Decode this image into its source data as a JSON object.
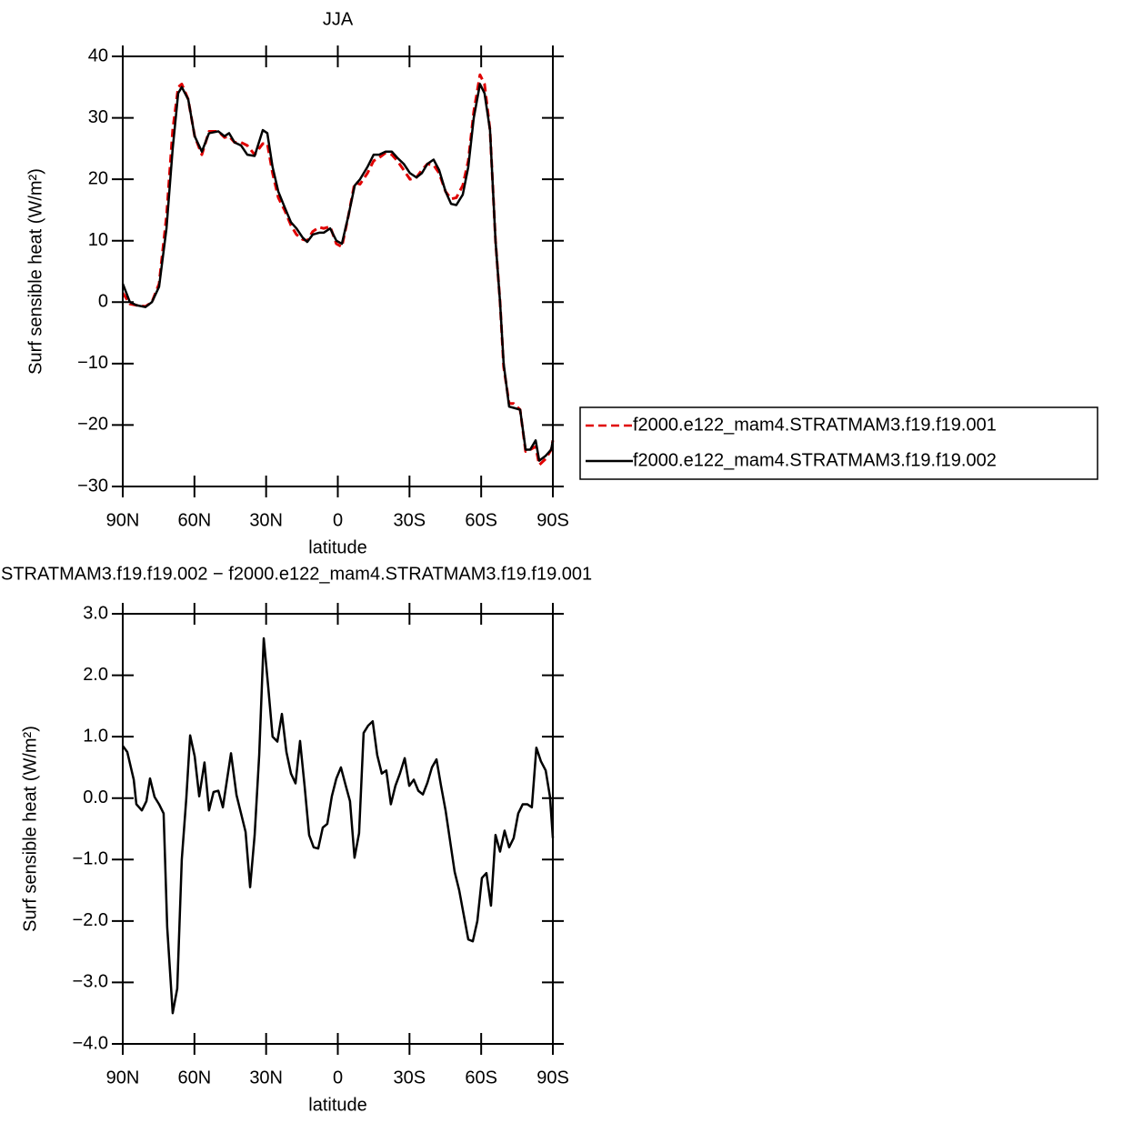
{
  "chart_data": [
    {
      "type": "line",
      "title": "JJA",
      "x_label": "latitude",
      "y_label": "Surf sensible heat (W/m²)",
      "xlim": [
        90,
        -90
      ],
      "ylim": [
        -30,
        40
      ],
      "xticks": [
        {
          "value": 90,
          "label": "90N"
        },
        {
          "value": 60,
          "label": "60N"
        },
        {
          "value": 30,
          "label": "30N"
        },
        0,
        {
          "value": -30,
          "label": "30S"
        },
        {
          "value": -60,
          "label": "60S"
        },
        {
          "value": -90,
          "label": "90S"
        }
      ],
      "yticks": [
        {
          "value": -30,
          "label": "−30"
        },
        {
          "value": -20,
          "label": "−20"
        },
        {
          "value": -10,
          "label": "−10"
        },
        0,
        10,
        20,
        30,
        40
      ],
      "legend": "right",
      "x": [
        90,
        87,
        84.3,
        80.5,
        77.8,
        74.8,
        71.7,
        69.1,
        66.8,
        65.3,
        62.6,
        59.9,
        56.9,
        53.9,
        50,
        47.4,
        45.5,
        43.2,
        40.5,
        37.9,
        34.8,
        31.4,
        29.5,
        27.3,
        24.9,
        22.3,
        19.6,
        17.3,
        14.7,
        12.8,
        10.5,
        7.8,
        5.9,
        3.2,
        0.6,
        -1.7,
        -4.4,
        -7.1,
        -9.3,
        -12.4,
        -15,
        -17.3,
        -20,
        -22.6,
        -24.9,
        -27.6,
        -30.2,
        -32.9,
        -35.2,
        -37.5,
        -40.1,
        -42.4,
        -45.1,
        -47.4,
        -49.6,
        -52.3,
        -54.6,
        -56.9,
        -59.5,
        -61.4,
        -63.7,
        -66,
        -67.9,
        -69.4,
        -71.7,
        -73.6,
        -76.3,
        -78.6,
        -80.5,
        -82.8,
        -84.3,
        -87,
        -89.3,
        -90
      ],
      "series": [
        {
          "name": "f2000.e122_mam4.STRATMAM3.f19.f19.001",
          "color": "#e00000",
          "linestyle": "dashed",
          "values": [
            1.5,
            -0.3,
            -0.5,
            -0.7,
            0,
            3,
            14,
            28,
            35,
            35.5,
            33,
            27,
            24,
            27.8,
            27.8,
            26.8,
            27,
            26,
            26,
            25.5,
            24,
            25.8,
            25.8,
            21,
            17,
            15,
            12.5,
            11,
            10.2,
            10,
            11.5,
            12.2,
            12,
            12.3,
            9.5,
            9,
            14,
            19.5,
            19.2,
            21,
            23,
            23.5,
            24.3,
            24,
            23,
            21.5,
            20,
            20.3,
            21.5,
            22.5,
            22.3,
            21,
            18,
            16.8,
            17,
            19,
            23,
            31,
            37,
            35.5,
            28,
            10,
            0,
            -10.5,
            -16.5,
            -16.5,
            -17.5,
            -24.3,
            -24,
            -23.5,
            -26.5,
            -25.5,
            -24,
            -22.5
          ]
        },
        {
          "name": "f2000.e122_mam4.STRATMAM3.f19.f19.002",
          "color": "#000000",
          "linestyle": "solid",
          "values": [
            3,
            0,
            -0.5,
            -0.8,
            0,
            2.5,
            12,
            25,
            34,
            35,
            33,
            27,
            24.5,
            27.5,
            27.8,
            27,
            27.5,
            26,
            25.5,
            24,
            23.8,
            28,
            27.5,
            22,
            18,
            15.5,
            13,
            12,
            10.5,
            9.8,
            11,
            11.3,
            11.3,
            12,
            10,
            9.5,
            14,
            19,
            20,
            22,
            24,
            24,
            24.5,
            24.5,
            23.5,
            22.5,
            21,
            20.3,
            21,
            22.5,
            23.2,
            21.5,
            18,
            16,
            15.8,
            17.5,
            22,
            30,
            35.5,
            34,
            28,
            10,
            0,
            -10,
            -17,
            -17.2,
            -17.5,
            -24,
            -24,
            -22.5,
            -25.8,
            -25,
            -24,
            -22.5
          ]
        }
      ]
    },
    {
      "type": "line",
      "title": "STRATMAM3.f19.f19.002 − f2000.e122_mam4.STRATMAM3.f19.f19.001",
      "x_label": "latitude",
      "y_label": "Surf sensible heat (W/m²)",
      "xlim": [
        90,
        -90
      ],
      "ylim": [
        -4,
        3
      ],
      "xticks": [
        {
          "value": 90,
          "label": "90N"
        },
        {
          "value": 60,
          "label": "60N"
        },
        {
          "value": 30,
          "label": "30N"
        },
        0,
        {
          "value": -30,
          "label": "30S"
        },
        {
          "value": -60,
          "label": "60S"
        },
        {
          "value": -90,
          "label": "90S"
        }
      ],
      "yticks": [
        {
          "value": -4,
          "label": "−4.0"
        },
        {
          "value": -3,
          "label": "−3.0"
        },
        {
          "value": -2,
          "label": "−2.0"
        },
        {
          "value": -1,
          "label": "−1.0"
        },
        {
          "value": 0,
          "label": "0.0"
        },
        {
          "value": 1,
          "label": "1.0"
        },
        {
          "value": 2,
          "label": "2.0"
        },
        {
          "value": 3,
          "label": "3.0"
        }
      ],
      "x": [
        90,
        88.1,
        85.4,
        84.3,
        82,
        80.1,
        78.6,
        76.7,
        74.8,
        72.9,
        71.4,
        69.1,
        67.2,
        65.3,
        63.4,
        61.8,
        59.9,
        58,
        55.8,
        53.9,
        52,
        50,
        48.1,
        44.7,
        42.4,
        40.5,
        38.6,
        36.7,
        34.8,
        32.9,
        31,
        29.1,
        27.3,
        25.3,
        23.4,
        21.5,
        19.6,
        17.7,
        15.8,
        13.9,
        12,
        10.1,
        8.2,
        6.3,
        4.4,
        2.5,
        0.6,
        -1.3,
        -3.2,
        -5.1,
        -7,
        -8.9,
        -10.8,
        -12.7,
        -14.6,
        -16.5,
        -18.4,
        -20.3,
        -22.2,
        -24.1,
        -26,
        -28,
        -29.9,
        -31.8,
        -33.7,
        -35.6,
        -37.5,
        -39.4,
        -41.3,
        -43.2,
        -45.1,
        -47,
        -48.9,
        -50.8,
        -52.7,
        -54.6,
        -56.5,
        -58.4,
        -60.3,
        -62.2,
        -64.1,
        -66,
        -67.9,
        -69.8,
        -71.7,
        -73.6,
        -75.5,
        -77.4,
        -79.3,
        -81.2,
        -83.1,
        -85,
        -87,
        -88.8,
        -90
      ],
      "series": [
        {
          "color": "#000000",
          "linestyle": "solid",
          "values": [
            0.85,
            0.75,
            0.3,
            -0.1,
            -0.2,
            -0.05,
            0.32,
            0.02,
            -0.1,
            -0.25,
            -2.1,
            -3.5,
            -3.1,
            -1.0,
            0,
            1.02,
            0.68,
            0.03,
            0.58,
            -0.2,
            0.1,
            0.12,
            -0.15,
            0.73,
            0.05,
            -0.25,
            -0.55,
            -1.45,
            -0.6,
            0.7,
            2.6,
            1.8,
            1.0,
            0.92,
            1.37,
            0.75,
            0.4,
            0.24,
            0.93,
            0.2,
            -0.6,
            -0.8,
            -0.82,
            -0.48,
            -0.42,
            0.03,
            0.32,
            0.5,
            0.22,
            -0.05,
            -0.97,
            -0.57,
            1.06,
            1.18,
            1.25,
            0.7,
            0.4,
            0.45,
            -0.1,
            0.2,
            0.4,
            0.65,
            0.2,
            0.3,
            0.12,
            0.06,
            0.25,
            0.5,
            0.63,
            0.2,
            -0.2,
            -0.7,
            -1.2,
            -1.5,
            -1.9,
            -2.3,
            -2.33,
            -2.0,
            -1.3,
            -1.22,
            -1.75,
            -0.6,
            -0.87,
            -0.53,
            -0.8,
            -0.65,
            -0.25,
            -0.1,
            -0.1,
            -0.15,
            0.82,
            0.6,
            0.45,
            0.02,
            -0.65
          ]
        }
      ]
    }
  ]
}
